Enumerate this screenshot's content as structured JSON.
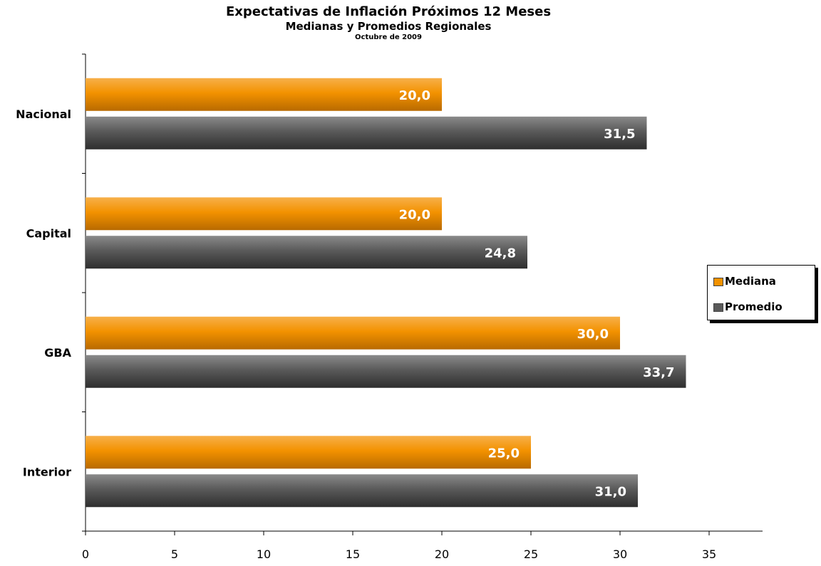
{
  "chart_data": {
    "type": "bar",
    "orientation": "horizontal",
    "title": "Expectativas de Inflación Próximos 12 Meses",
    "subtitle": "Medianas y Promedios Regionales",
    "date_note": "Octubre de 2009",
    "categories": [
      "Nacional",
      "Capital",
      "GBA",
      "Interior"
    ],
    "series": [
      {
        "name": "Mediana",
        "values": [
          20.0,
          20.0,
          30.0,
          25.0
        ],
        "labels": [
          "20,0",
          "20,0",
          "30,0",
          "25,0"
        ],
        "color": "#F39200"
      },
      {
        "name": "Promedio",
        "values": [
          31.5,
          24.8,
          33.7,
          31.0
        ],
        "labels": [
          "31,5",
          "24,8",
          "33,7",
          "31,0"
        ],
        "color": "#5A5A5A"
      }
    ],
    "xlim": [
      0,
      38
    ],
    "xticks": [
      "0",
      "5",
      "10",
      "15",
      "20",
      "25",
      "30",
      "35"
    ],
    "xtick_values": [
      0,
      5,
      10,
      15,
      20,
      25,
      30,
      35
    ],
    "grid": false,
    "legend_position": "right"
  }
}
